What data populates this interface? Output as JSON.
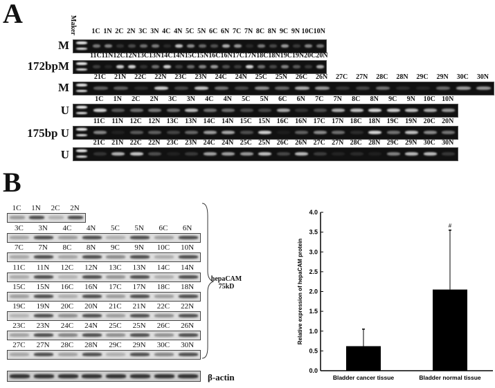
{
  "panel_a": {
    "label": "A",
    "marker_label": "Maker",
    "row_labels": [
      "M",
      "172bpM",
      "M",
      "U",
      "175bp U",
      "U"
    ],
    "lane_rows": [
      [
        "1C",
        "1N",
        "2C",
        "2N",
        "3C",
        "3N",
        "4C",
        "4N",
        "5C",
        "5N",
        "6C",
        "6N",
        "7C",
        "7N",
        "8C",
        "8N",
        "9C",
        "9N",
        "10C",
        "10N"
      ],
      [
        "11C",
        "11N",
        "12C",
        "12N",
        "13C",
        "13N",
        "14C",
        "14N",
        "15C",
        "15N",
        "16C",
        "16N",
        "17C",
        "17N",
        "18C",
        "18N",
        "19C",
        "19N",
        "20C",
        "20N"
      ],
      [
        "21C",
        "21N",
        "22C",
        "22N",
        "23C",
        "23N",
        "24C",
        "24N",
        "25C",
        "25N",
        "26C",
        "26N",
        "27C",
        "27N",
        "28C",
        "28N",
        "29C",
        "29N",
        "30C",
        "30N"
      ],
      [
        "1C",
        "1N",
        "2C",
        "2N",
        "3C",
        "3N",
        "4C",
        "4N",
        "5C",
        "5N",
        "6C",
        "6N",
        "7C",
        "7N",
        "8C",
        "8N",
        "9C",
        "9N",
        "10C",
        "10N"
      ],
      [
        "11C",
        "11N",
        "12C",
        "12N",
        "13C",
        "13N",
        "14C",
        "14N",
        "15C",
        "15N",
        "16C",
        "16N",
        "17C",
        "17N",
        "18C",
        "18N",
        "19C",
        "19N",
        "20C",
        "20N"
      ],
      [
        "21C",
        "21N",
        "22C",
        "22N",
        "23C",
        "23N",
        "24C",
        "24N",
        "25C",
        "25N",
        "26C",
        "26N",
        "27C",
        "27N",
        "28C",
        "28N",
        "29C",
        "29N",
        "30C",
        "30N"
      ]
    ]
  },
  "panel_b": {
    "label": "B",
    "blot_rows": [
      [
        "1C",
        "1N",
        "2C",
        "2N"
      ],
      [
        "3C",
        "3N",
        "4C",
        "4N",
        "5C",
        "5N",
        "6C",
        "6N"
      ],
      [
        "7C",
        "7N",
        "8C",
        "8N",
        "9C",
        "9N",
        "10C",
        "10N"
      ],
      [
        "11C",
        "11N",
        "12C",
        "12N",
        "13C",
        "13N",
        "14C",
        "14N"
      ],
      [
        "15C",
        "15N",
        "16C",
        "16N",
        "17C",
        "17N",
        "18C",
        "18N"
      ],
      [
        "19C",
        "19N",
        "20C",
        "20N",
        "21C",
        "21N",
        "22C",
        "22N"
      ],
      [
        "23C",
        "23N",
        "24C",
        "24N",
        "25C",
        "25N",
        "26C",
        "26N"
      ],
      [
        "27C",
        "27N",
        "28C",
        "28N",
        "29C",
        "29N",
        "30C",
        "30N"
      ]
    ],
    "protein_label": "hepaCAM",
    "size_label": "75kD",
    "actin_label": "β-actin"
  },
  "chart_data": {
    "type": "bar",
    "categories": [
      "Bladder cancer tissue",
      "Bladder normal tissue"
    ],
    "values": [
      0.62,
      2.05
    ],
    "errors": [
      0.43,
      1.5
    ],
    "annotations": [
      "",
      "#"
    ],
    "ylabel": "Relative expression of hepaCAM protein",
    "xlabel": "",
    "ylim": [
      0,
      4.0
    ],
    "yticks": [
      "0.0",
      "0.5",
      "1.0",
      "1.5",
      "2.0",
      "2.5",
      "3.0",
      "3.5",
      "4.0"
    ],
    "grid": false
  }
}
